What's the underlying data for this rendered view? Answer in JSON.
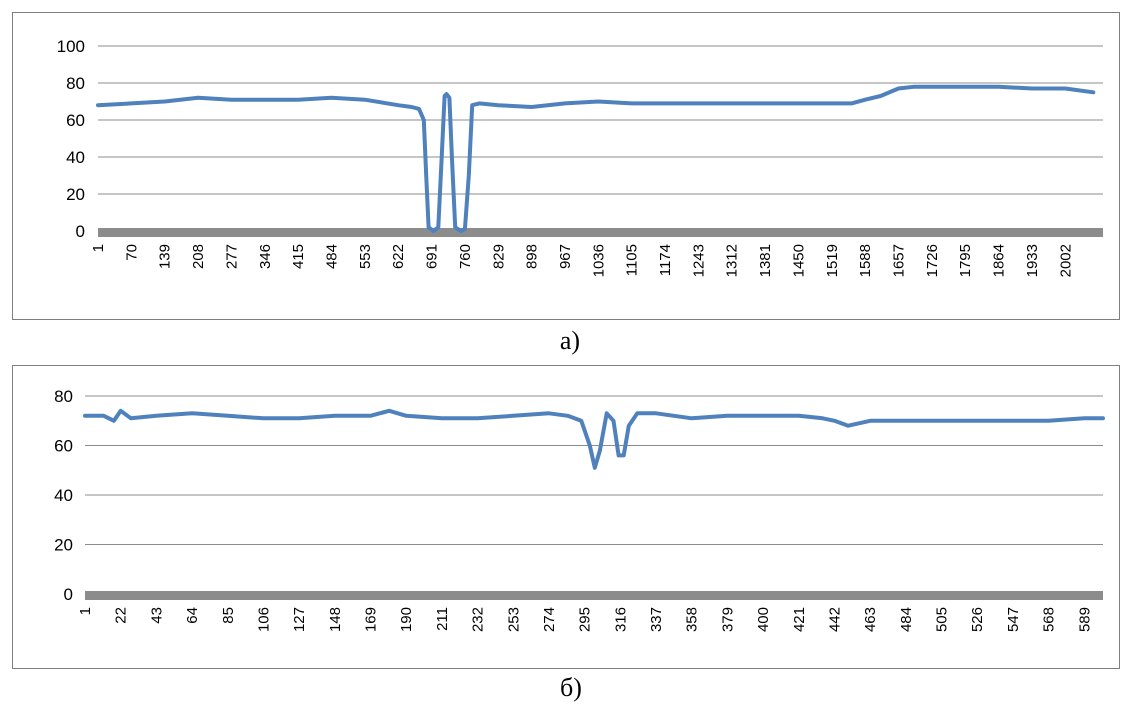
{
  "captions": {
    "a": "а)",
    "b": "б)"
  },
  "colors": {
    "series": "#4f81bd",
    "grid": "#8c8c8c",
    "axis": "#8c8c8c",
    "frame": "#7f7f7f"
  },
  "chart_data": [
    {
      "type": "line",
      "caption": "а)",
      "xlabel": "",
      "ylabel": "",
      "ylim": [
        0,
        100
      ],
      "yticks": [
        0,
        20,
        40,
        60,
        80,
        100
      ],
      "xlim": [
        1,
        2080
      ],
      "xticks": [
        1,
        70,
        139,
        208,
        277,
        346,
        415,
        484,
        553,
        622,
        691,
        760,
        829,
        898,
        967,
        1036,
        1105,
        1174,
        1243,
        1312,
        1381,
        1450,
        1519,
        1588,
        1657,
        1726,
        1795,
        1864,
        1933,
        2002
      ],
      "grid": true,
      "legend": "none",
      "series": [
        {
          "x": [
            1,
            70,
            139,
            208,
            277,
            346,
            415,
            484,
            553,
            622,
            650,
            665,
            675,
            680,
            685,
            695,
            705,
            712,
            718,
            722,
            728,
            733,
            740,
            752,
            760,
            768,
            775,
            790,
            829,
            898,
            967,
            1036,
            1105,
            1174,
            1243,
            1312,
            1381,
            1450,
            1519,
            1560,
            1588,
            1620,
            1657,
            1690,
            1726,
            1795,
            1864,
            1933,
            2002,
            2060
          ],
          "y": [
            68,
            69,
            70,
            72,
            71,
            71,
            71,
            72,
            71,
            68,
            67,
            66,
            60,
            30,
            2,
            0,
            2,
            40,
            73,
            74,
            72,
            40,
            2,
            0,
            1,
            30,
            68,
            69,
            68,
            67,
            69,
            70,
            69,
            69,
            69,
            69,
            69,
            69,
            69,
            69,
            71,
            73,
            77,
            78,
            78,
            78,
            78,
            77,
            77,
            75
          ]
        }
      ]
    },
    {
      "type": "line",
      "caption": "б)",
      "xlabel": "",
      "ylabel": "",
      "ylim": [
        0,
        80
      ],
      "yticks": [
        0,
        20,
        40,
        60,
        80
      ],
      "xlim": [
        1,
        600
      ],
      "xticks": [
        1,
        22,
        43,
        64,
        85,
        106,
        127,
        148,
        169,
        190,
        211,
        232,
        253,
        274,
        295,
        316,
        337,
        358,
        379,
        400,
        421,
        442,
        463,
        484,
        505,
        526,
        547,
        568,
        589
      ],
      "grid": true,
      "legend": "none",
      "series": [
        {
          "x": [
            1,
            12,
            18,
            22,
            28,
            43,
            64,
            85,
            106,
            127,
            148,
            169,
            180,
            190,
            211,
            232,
            253,
            274,
            285,
            293,
            298,
            301,
            304,
            308,
            312,
            315,
            318,
            321,
            326,
            337,
            358,
            379,
            400,
            421,
            435,
            442,
            450,
            463,
            484,
            505,
            526,
            547,
            568,
            589,
            600
          ],
          "y": [
            72,
            72,
            70,
            74,
            71,
            72,
            73,
            72,
            71,
            71,
            72,
            72,
            74,
            72,
            71,
            71,
            72,
            73,
            72,
            70,
            60,
            51,
            58,
            73,
            70,
            56,
            56,
            68,
            73,
            73,
            71,
            72,
            72,
            72,
            71,
            70,
            68,
            70,
            70,
            70,
            70,
            70,
            70,
            71,
            71
          ]
        }
      ]
    }
  ]
}
